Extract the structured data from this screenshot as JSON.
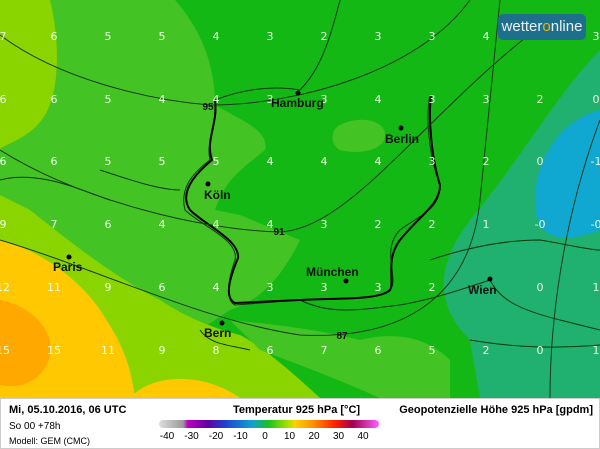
{
  "logo": {
    "text_a": "wetter",
    "text_o": "o",
    "text_b": "nline"
  },
  "map": {
    "grid_values": [
      [
        "7",
        "6",
        "5",
        "5",
        "4",
        "3",
        "2",
        "3",
        "3",
        "4",
        "",
        "3"
      ],
      [
        "6",
        "6",
        "5",
        "4",
        "4",
        "3",
        "3",
        "4",
        "3",
        "3",
        "2",
        "0"
      ],
      [
        "6",
        "6",
        "5",
        "5",
        "5",
        "4",
        "4",
        "4",
        "3",
        "2",
        "0",
        "-1"
      ],
      [
        "9",
        "7",
        "6",
        "4",
        "4",
        "4",
        "3",
        "2",
        "2",
        "1",
        "-0",
        "-0"
      ],
      [
        "12",
        "11",
        "9",
        "6",
        "4",
        "3",
        "3",
        "3",
        "2",
        "",
        "0",
        "1"
      ],
      [
        "15",
        "15",
        "11",
        "9",
        "8",
        "6",
        "7",
        "6",
        "5",
        "2",
        "0",
        "1"
      ]
    ],
    "cities": [
      "Hamburg",
      "Berlin",
      "Köln",
      "Paris",
      "München",
      "Bern",
      "Wien"
    ],
    "isolines": [
      "95",
      "91",
      "87"
    ]
  },
  "legend": {
    "date": "Mi, 05.10.2016, 06 UTC",
    "run": "So 00 +78h",
    "model": "Modell: GEM (CMC)",
    "title": "Temperatur 925 hPa [°C]",
    "title2": "Geopotenzielle Höhe 925 hPa [gpdm]",
    "ticks": [
      "-40",
      "-30",
      "-20",
      "-10",
      "0",
      "10",
      "20",
      "30",
      "40"
    ]
  },
  "colors": {
    "green": "#14b814",
    "light_green": "#44c424",
    "yellow_green": "#8ad400",
    "yellow": "#ffc800",
    "orange": "#ffa800",
    "teal": "#20b070",
    "blue": "#10a8d0"
  }
}
